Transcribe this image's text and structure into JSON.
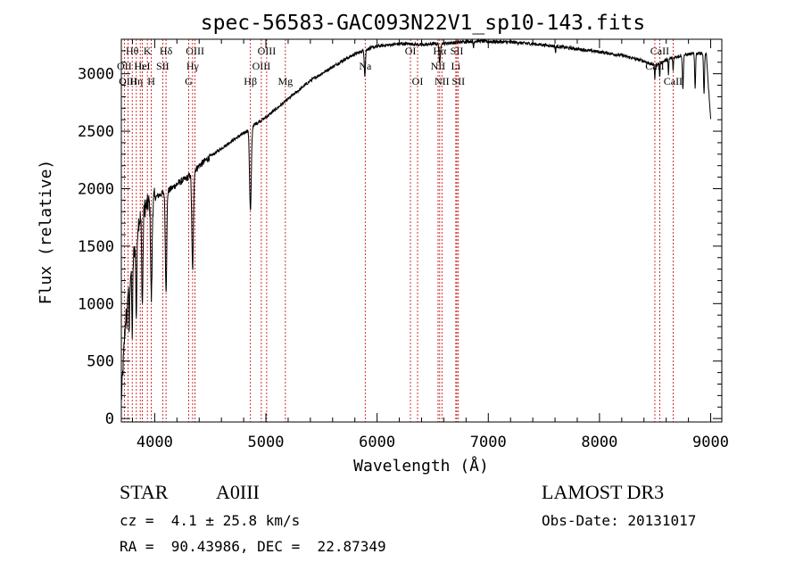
{
  "chart_data": {
    "type": "line",
    "title": "spec-56583-GAC093N22V1_sp10-143.fits",
    "xlabel": "Wavelength (Å)",
    "ylabel": "Flux (relative)",
    "xlim": [
      3700,
      9100
    ],
    "ylim": [
      -30,
      3300
    ],
    "xticks": [
      4000,
      5000,
      6000,
      7000,
      8000,
      9000
    ],
    "yticks": [
      0,
      500,
      1000,
      1500,
      2000,
      2500,
      3000
    ],
    "lines": [
      {
        "label": "Hθ",
        "wl": 3798,
        "row": 1
      },
      {
        "label": "OII",
        "wl": 3727,
        "row": 2
      },
      {
        "label": "OIII",
        "wl": 3760,
        "row": 3
      },
      {
        "label": "Hε",
        "wl": 3870,
        "row": 2
      },
      {
        "label": "Hη",
        "wl": 3835,
        "row": 3
      },
      {
        "label": "K",
        "wl": 3934,
        "row": 1
      },
      {
        "label": "H",
        "wl": 3969,
        "row": 3
      },
      {
        "label": "HeI",
        "wl": 3889,
        "row": 2
      },
      {
        "label": "SII",
        "wl": 4072,
        "row": 2
      },
      {
        "label": "Hδ",
        "wl": 4102,
        "row": 1
      },
      {
        "label": "OIII",
        "wl": 4363,
        "row": 1
      },
      {
        "label": "Hγ",
        "wl": 4341,
        "row": 2
      },
      {
        "label": "G",
        "wl": 4305,
        "row": 3
      },
      {
        "label": "Hβ",
        "wl": 4861,
        "row": 3
      },
      {
        "label": "OIII",
        "wl": 4959,
        "row": 2
      },
      {
        "label": "OIII",
        "wl": 5007,
        "row": 1
      },
      {
        "label": "Mg",
        "wl": 5175,
        "row": 3
      },
      {
        "label": "Na",
        "wl": 5893,
        "row": 2
      },
      {
        "label": "OI",
        "wl": 6300,
        "row": 1
      },
      {
        "label": "OI",
        "wl": 6364,
        "row": 3
      },
      {
        "label": "Hα",
        "wl": 6563,
        "row": 1
      },
      {
        "label": "NII",
        "wl": 6548,
        "row": 2
      },
      {
        "label": "NII",
        "wl": 6583,
        "row": 3
      },
      {
        "label": "SII",
        "wl": 6717,
        "row": 1
      },
      {
        "label": "Li",
        "wl": 6708,
        "row": 2
      },
      {
        "label": "SII",
        "wl": 6731,
        "row": 3
      },
      {
        "label": "CaII",
        "wl": 8542,
        "row": 1
      },
      {
        "label": "CaII",
        "wl": 8498,
        "row": 2
      },
      {
        "label": "CaII",
        "wl": 8662,
        "row": 3
      }
    ],
    "continuum": [
      [
        3700,
        150
      ],
      [
        3750,
        1100
      ],
      [
        3800,
        1350
      ],
      [
        3850,
        1700
      ],
      [
        3900,
        1820
      ],
      [
        3950,
        1880
      ],
      [
        4000,
        1920
      ],
      [
        4050,
        1950
      ],
      [
        4100,
        1970
      ],
      [
        4150,
        2000
      ],
      [
        4200,
        2040
      ],
      [
        4300,
        2100
      ],
      [
        4400,
        2200
      ],
      [
        4500,
        2280
      ],
      [
        4600,
        2350
      ],
      [
        4700,
        2420
      ],
      [
        4800,
        2480
      ],
      [
        4900,
        2560
      ],
      [
        5000,
        2620
      ],
      [
        5100,
        2700
      ],
      [
        5200,
        2780
      ],
      [
        5300,
        2860
      ],
      [
        5400,
        2940
      ],
      [
        5500,
        3000
      ],
      [
        5600,
        3060
      ],
      [
        5700,
        3120
      ],
      [
        5800,
        3170
      ],
      [
        5900,
        3210
      ],
      [
        6000,
        3240
      ],
      [
        6100,
        3250
      ],
      [
        6200,
        3260
      ],
      [
        6300,
        3260
      ],
      [
        6400,
        3250
      ],
      [
        6500,
        3260
      ],
      [
        6600,
        3265
      ],
      [
        6700,
        3270
      ],
      [
        6800,
        3280
      ],
      [
        6900,
        3285
      ],
      [
        7000,
        3280
      ],
      [
        7200,
        3275
      ],
      [
        7400,
        3260
      ],
      [
        7600,
        3240
      ],
      [
        7800,
        3215
      ],
      [
        8000,
        3190
      ],
      [
        8200,
        3160
      ],
      [
        8400,
        3110
      ],
      [
        8500,
        3070
      ],
      [
        8600,
        3120
      ],
      [
        8700,
        3150
      ],
      [
        8800,
        3170
      ],
      [
        8900,
        3180
      ],
      [
        8960,
        3170
      ],
      [
        9000,
        2600
      ]
    ],
    "absorptions": [
      {
        "wl": 3750,
        "depth": 250,
        "width": 6
      },
      {
        "wl": 3771,
        "depth": 450,
        "width": 5
      },
      {
        "wl": 3798,
        "depth": 600,
        "width": 6
      },
      {
        "wl": 3835,
        "depth": 700,
        "width": 7
      },
      {
        "wl": 3889,
        "depth": 800,
        "width": 8
      },
      {
        "wl": 3970,
        "depth": 850,
        "width": 9
      },
      {
        "wl": 4102,
        "depth": 850,
        "width": 9
      },
      {
        "wl": 4341,
        "depth": 850,
        "width": 10
      },
      {
        "wl": 4861,
        "depth": 720,
        "width": 11
      },
      {
        "wl": 5890,
        "depth": 220,
        "width": 7
      },
      {
        "wl": 6563,
        "depth": 180,
        "width": 8
      },
      {
        "wl": 6867,
        "depth": 60,
        "width": 4
      },
      {
        "wl": 7605,
        "depth": 60,
        "width": 4
      },
      {
        "wl": 8498,
        "depth": 120,
        "width": 4
      },
      {
        "wl": 8542,
        "depth": 130,
        "width": 4
      },
      {
        "wl": 8620,
        "depth": 150,
        "width": 4
      },
      {
        "wl": 8662,
        "depth": 120,
        "width": 4
      },
      {
        "wl": 8750,
        "depth": 300,
        "width": 6
      },
      {
        "wl": 8860,
        "depth": 300,
        "width": 6
      },
      {
        "wl": 8940,
        "depth": 350,
        "width": 6
      }
    ]
  },
  "info": {
    "object_type": "STAR",
    "spectral_class": "A0III",
    "redshift": "cz =  4.1 ± 25.8 km/s",
    "coordinates": "RA =  90.43986, DEC =  22.87349",
    "survey": "LAMOST DR3",
    "obs_date": "Obs-Date: 20131017"
  }
}
